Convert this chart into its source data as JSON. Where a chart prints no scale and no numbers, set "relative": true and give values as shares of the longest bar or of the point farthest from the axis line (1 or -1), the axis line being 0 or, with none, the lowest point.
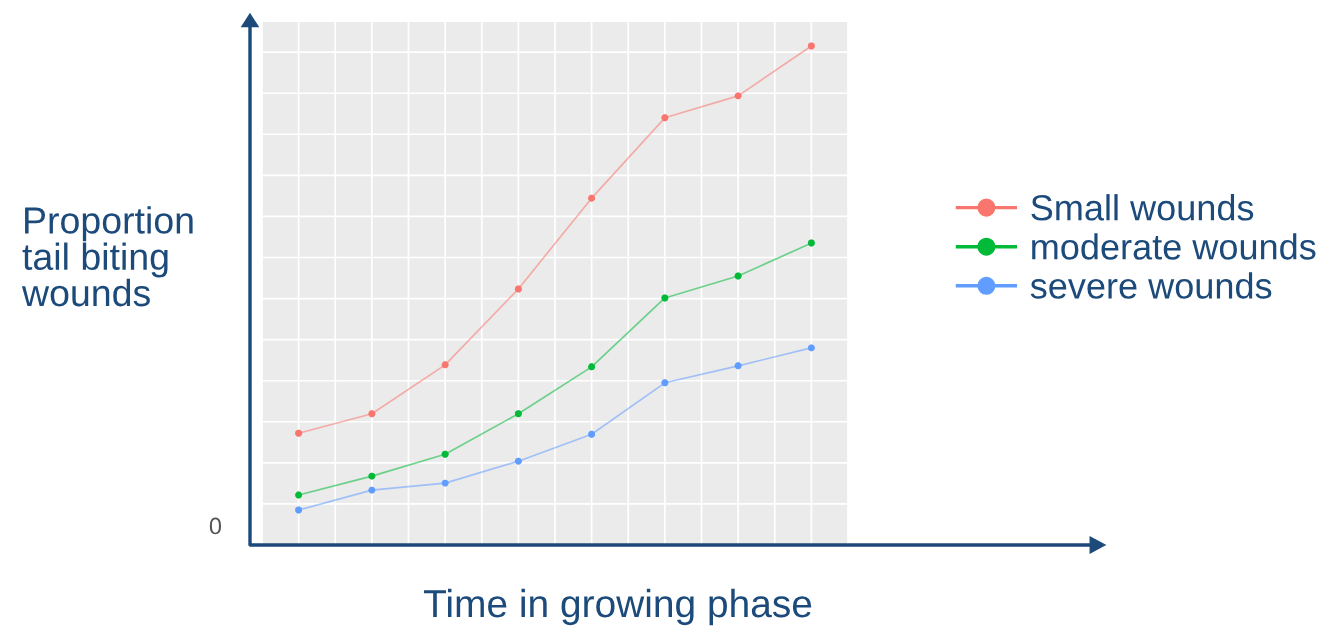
{
  "chart_data": {
    "type": "line",
    "relative": true,
    "xlabel": "Time in growing phase",
    "ylabel": "Proportion\ntail biting\nwounds",
    "categories": [
      null,
      null,
      null,
      null,
      null,
      null,
      null,
      null
    ],
    "series": [
      {
        "name": "Small wounds",
        "color": "#f8766d",
        "values": [
          0.224,
          0.263,
          0.361,
          0.513,
          0.695,
          0.856,
          0.9,
          1
        ]
      },
      {
        "name": "moderate wounds",
        "color": "#00ba38",
        "values": [
          0.1,
          0.138,
          0.182,
          0.263,
          0.357,
          0.495,
          0.539,
          0.605
        ]
      },
      {
        "name": "severe wounds",
        "color": "#619cff",
        "values": [
          0.07,
          0.11,
          0.124,
          0.168,
          0.222,
          0.325,
          0.359,
          0.395
        ]
      }
    ],
    "annotations": [
      "0"
    ],
    "grid": true,
    "legend": "right",
    "marker": "circle",
    "line_style": "solid",
    "tick_labels": false
  }
}
